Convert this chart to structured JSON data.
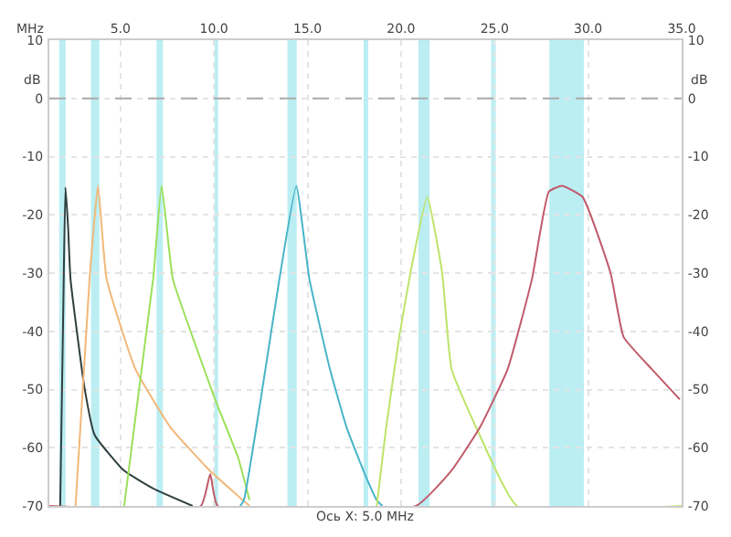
{
  "chart_data": {
    "type": "line",
    "xlabel": "MHz",
    "ylabel": "dB",
    "annotations": [
      "Ось X: 5.0 MHz"
    ],
    "xlim": [
      1.2,
      35
    ],
    "xticks": [
      {
        "value": 5,
        "label": "5.0"
      },
      {
        "value": 10,
        "label": "10.0"
      },
      {
        "value": 15,
        "label": "15.0"
      },
      {
        "value": 20,
        "label": "20.0"
      },
      {
        "value": 25,
        "label": "25.0"
      },
      {
        "value": 30,
        "label": "30.0"
      },
      {
        "value": 35,
        "label": "35.0"
      }
    ],
    "ylim": [
      -70,
      10
    ],
    "yticks": [
      -70,
      -60,
      -50,
      -40,
      -30,
      -20,
      -10,
      0,
      10
    ],
    "y2lim": [
      -70,
      10
    ],
    "y2ticks": [
      -70,
      -60,
      -50,
      -40,
      -30,
      -20,
      -10,
      0,
      10
    ],
    "grid": true,
    "legend": false,
    "marker": "none",
    "line_style": "solid",
    "ref_lines": [
      {
        "axis": "y",
        "value": 0,
        "color": "#aaaaaa",
        "line_style": "dashed"
      }
    ],
    "bands": [
      {
        "axis": "x",
        "from": 1.8,
        "to": 2.0,
        "color": "#8fe3ea"
      },
      {
        "axis": "x",
        "from": 3.5,
        "to": 3.8,
        "color": "#8fe3ea"
      },
      {
        "axis": "x",
        "from": 7.0,
        "to": 7.2,
        "color": "#8fe3ea"
      },
      {
        "axis": "x",
        "from": 10.1,
        "to": 10.15,
        "color": "#8fe3ea"
      },
      {
        "axis": "x",
        "from": 14.0,
        "to": 14.35,
        "color": "#8fe3ea"
      },
      {
        "axis": "x",
        "from": 18.07,
        "to": 18.17,
        "color": "#8fe3ea"
      },
      {
        "axis": "x",
        "from": 21.0,
        "to": 21.45,
        "color": "#8fe3ea"
      },
      {
        "axis": "x",
        "from": 24.89,
        "to": 24.99,
        "color": "#8fe3ea"
      },
      {
        "axis": "x",
        "from": 28.0,
        "to": 29.7,
        "color": "#8fe3ea"
      }
    ],
    "series": [
      {
        "color": "#2f3f3f",
        "x": [
          1.78,
          1.95,
          2.06,
          2.2,
          2.33,
          3.07,
          3.62,
          5.18,
          6.75,
          8.86
        ],
        "values": [
          -70,
          -35,
          -15.3,
          -22,
          -31,
          -49.5,
          -57.8,
          -63.9,
          -67,
          -70
        ]
      },
      {
        "color": "#f0b878",
        "x": [
          2.6,
          3.35,
          3.8,
          4.26,
          5.8,
          7.7,
          9.8,
          11.9
        ],
        "values": [
          -70,
          -31,
          -15,
          -31,
          -46.5,
          -56.6,
          -64,
          -70
        ]
      },
      {
        "color": "#9ce05a",
        "x": [
          5.2,
          6.75,
          7.2,
          7.8,
          8.86,
          10.06,
          11.3,
          11.9
        ],
        "values": [
          -70,
          -31,
          -15,
          -31,
          -41,
          -51.7,
          -61.8,
          -69
        ]
      },
      {
        "color": "#48b4c8",
        "x": [
          11.4,
          11.6,
          12.5,
          13.5,
          14.4,
          15.1,
          16.2,
          17.1,
          18.1,
          18.7,
          19.0
        ],
        "values": [
          -70,
          -69,
          -51.7,
          -31,
          -15,
          -31,
          -46.5,
          -56.6,
          -64.8,
          -69,
          -70
        ]
      },
      {
        "color": "#bde46a",
        "x": [
          18.7,
          19.2,
          19.9,
          20.5,
          21.4,
          22.2,
          22.7,
          24.2,
          26.2,
          35
        ],
        "values": [
          -70,
          -56.6,
          -41,
          -30,
          -16.9,
          -30,
          -46.5,
          -57.8,
          -70,
          -70
        ]
      },
      {
        "color": "#c05a6a",
        "x": [
          1.2,
          9.3,
          9.8,
          10.2,
          20.8,
          22.7,
          24.2,
          25.7,
          27.0,
          27.9,
          28.6,
          29.7,
          31.2,
          31.9,
          33.4,
          34.9
        ],
        "values": [
          -70,
          -70,
          -64.5,
          -70,
          -70,
          -63.9,
          -56.6,
          -46.5,
          -31,
          -16,
          -15,
          -16.9,
          -30,
          -41,
          -46.5,
          -51.7
        ]
      }
    ]
  }
}
